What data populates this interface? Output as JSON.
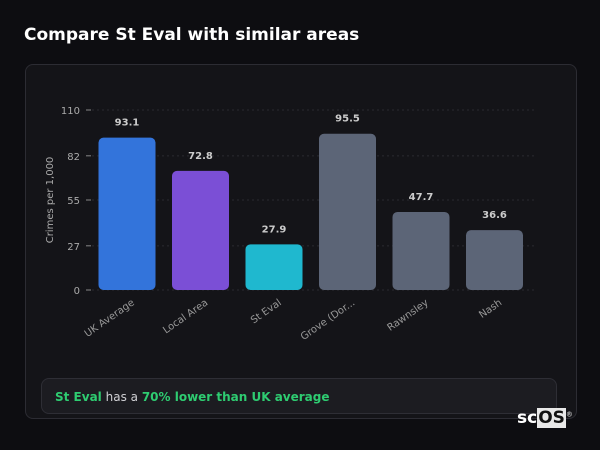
{
  "title": "Compare St Eval with similar areas",
  "chart_data": {
    "type": "bar",
    "categories": [
      "UK Average",
      "Local Area",
      "St Eval",
      "Grove (Dor...",
      "Rawnsley",
      "Nash"
    ],
    "values": [
      93.1,
      72.8,
      27.9,
      95.5,
      47.7,
      36.6
    ],
    "colors": [
      "#3374db",
      "#7b4fd6",
      "#1fb8cf",
      "#5c6577",
      "#5c6577",
      "#5c6577"
    ],
    "ylabel": "Crimes per 1,000",
    "xlabel": "",
    "ylim": [
      0,
      110
    ],
    "yticks": [
      0,
      27,
      55,
      82,
      110
    ],
    "grid": true,
    "data_labels": true
  },
  "summary": {
    "place": "St Eval",
    "middle": " has a ",
    "highlight": "70% lower than UK average"
  },
  "logo": {
    "text_a": "sc",
    "text_b": "OS",
    "mark": "®"
  }
}
